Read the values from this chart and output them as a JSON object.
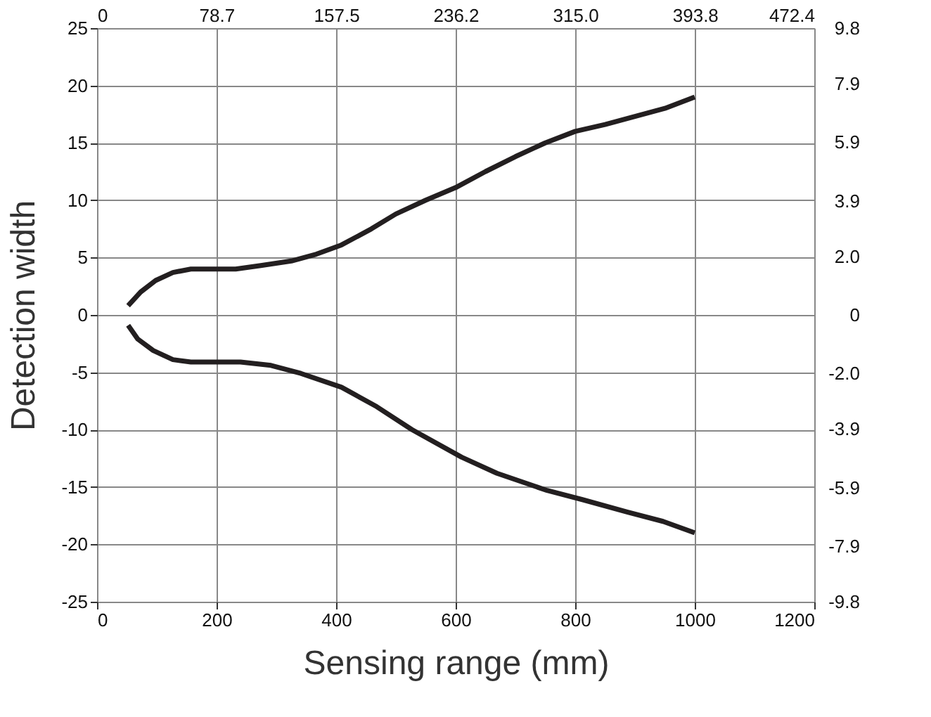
{
  "chart_data": {
    "type": "line",
    "xlabel": "Sensing range (mm)",
    "ylabel": "Detection width",
    "xlim": [
      0,
      1200
    ],
    "xticks": [
      0,
      200,
      400,
      600,
      800,
      1000,
      1200
    ],
    "ylim": [
      -25,
      25
    ],
    "yticks": [
      -25,
      -20,
      -15,
      -10,
      -5,
      0,
      5,
      10,
      15,
      20,
      25
    ],
    "x2lim": [
      0,
      472.4
    ],
    "x2ticks": [
      0,
      78.7,
      157.5,
      236.2,
      {
        "value": 315.0,
        "label": "315.0"
      },
      393.8,
      472.4
    ],
    "y2lim": [
      -9.8,
      9.8
    ],
    "y2ticks": [
      -9.8,
      -7.9,
      -5.9,
      -3.9,
      {
        "value": -2.0,
        "label": "-2.0"
      },
      0,
      {
        "value": 2.0,
        "label": "2.0"
      },
      3.9,
      5.9,
      7.9,
      9.8
    ],
    "grid": true,
    "legend": false,
    "marker": "none",
    "line_style": "solid",
    "series": [
      {
        "color": "#231f20",
        "x": [
          52,
          73,
          98,
          127,
          157,
          232,
          274,
          325,
          367,
          409,
          459,
          500,
          550,
          600,
          650,
          700,
          750,
          800,
          850,
          900,
          950,
          1000
        ],
        "values": [
          0.8,
          2.0,
          3.0,
          3.7,
          4.0,
          4.0,
          4.3,
          4.7,
          5.3,
          6.1,
          7.5,
          8.8,
          10.0,
          11.1,
          12.5,
          13.8,
          15.0,
          16.0,
          16.6,
          17.3,
          18.0,
          19.0
        ]
      },
      {
        "color": "#231f20",
        "x": [
          52,
          68,
          94,
          127,
          157,
          240,
          291,
          341,
          409,
          468,
          527,
          610,
          669,
          753,
          812,
          888,
          947,
          1000
        ],
        "values": [
          -0.9,
          -2.1,
          -3.1,
          -3.9,
          -4.1,
          -4.1,
          -4.4,
          -5.1,
          -6.3,
          -8.0,
          -10.0,
          -12.4,
          -13.8,
          -15.3,
          -16.1,
          -17.2,
          -18.0,
          -19.0
        ]
      }
    ]
  }
}
